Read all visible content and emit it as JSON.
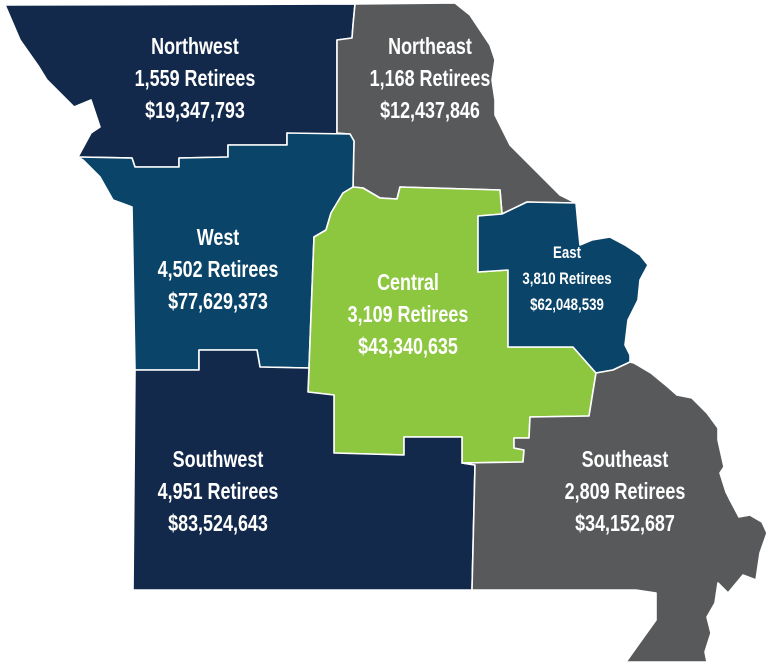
{
  "colors": {
    "navy": "#13294b",
    "teal_blue": "#0a4468",
    "gray": "#58595b",
    "green": "#8dc63f",
    "border": "#ffffff"
  },
  "regions": [
    {
      "id": "northwest",
      "name": "Northwest",
      "retirees": "1,559 Retirees",
      "amount": "$19,347,793",
      "color": "#13294b"
    },
    {
      "id": "northeast",
      "name": "Northeast",
      "retirees": "1,168 Retirees",
      "amount": "$12,437,846",
      "color": "#58595b"
    },
    {
      "id": "west",
      "name": "West",
      "retirees": "4,502 Retirees",
      "amount": "$77,629,373",
      "color": "#0a4468"
    },
    {
      "id": "central",
      "name": "Central",
      "retirees": "3,109 Retirees",
      "amount": "$43,340,635",
      "color": "#8dc63f"
    },
    {
      "id": "east",
      "name": "East",
      "retirees": "3,810 Retirees",
      "amount": "$62,048,539",
      "color": "#0a4468"
    },
    {
      "id": "southwest",
      "name": "Southwest",
      "retirees": "4,951 Retirees",
      "amount": "$83,524,643",
      "color": "#13294b"
    },
    {
      "id": "southeast",
      "name": "Southeast",
      "retirees": "2,809 Retirees",
      "amount": "$34,152,687",
      "color": "#58595b"
    }
  ]
}
